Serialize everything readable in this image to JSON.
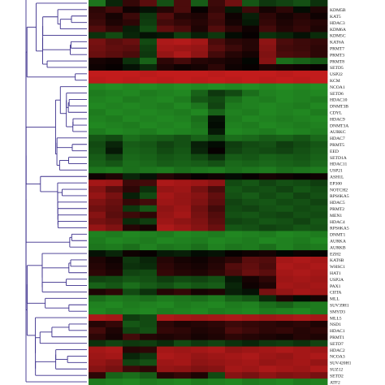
{
  "chart_data": {
    "type": "heatmap",
    "title": "",
    "xlabel": "",
    "ylabel": "",
    "color_scale": {
      "low": "#2db82d",
      "mid": "#000000",
      "high": "#e02020"
    },
    "value_range": [
      -3,
      3
    ],
    "dendrogram": {
      "side": "left",
      "color": "#3b2f8c"
    },
    "n_columns": 14,
    "row_labels": [
      "",
      "KDM5B",
      "KAT5",
      "HDAC3",
      "KDM6A",
      "KDM5C",
      "KAT6A",
      "PRMT7",
      "PRMT3",
      "PRMT8",
      "SETD5",
      "USP22",
      "KCM",
      "NCOA1",
      "SETD6",
      "HDAC10",
      "DNMT3B",
      "CDYL",
      "HDAC9",
      "DNMT3A",
      "AURKC",
      "HDAC7",
      "PRMT5",
      "EED",
      "SETD1A",
      "HDAC11",
      "USP21",
      "ASH1L",
      "EP300",
      "NOTCH2",
      "RPS6KA5",
      "HDAC5",
      "PRMT2",
      "MEN1",
      "HDAC4",
      "RPS6KA5",
      "DNMT1",
      "AURKA",
      "AURKB",
      "EZH2",
      "KAT6B",
      "WHSC1",
      "HAT1",
      "USP2A",
      "PAX1",
      "CIITA",
      "MLL",
      "SUV39H1",
      "SMYD3",
      "MLL5",
      "NSD1",
      "HDAC1",
      "PRMT1",
      "SETD7",
      "HDAC2",
      "NCOA3",
      "SUV420H1",
      "SUZ12",
      "SETD2",
      "ATF2",
      ""
    ],
    "values": [
      [
        -1.9,
        -0.6,
        0.7,
        1.2,
        -1.3,
        1.0,
        -1.5,
        0.8,
        1.5,
        -1.4,
        -0.9,
        -1.1,
        -1.3,
        -0.8
      ],
      [
        0.6,
        0.9,
        0.2,
        -0.3,
        0.5,
        1.0,
        0.1,
        0.7,
        -0.4,
        0.8,
        0.3,
        0.6,
        -0.2,
        0.4
      ],
      [
        0.7,
        0.3,
        0.8,
        -0.9,
        1.1,
        0.5,
        0.4,
        0.9,
        0.2,
        -0.5,
        0.6,
        0.3,
        0.5,
        0.2
      ],
      [
        0.8,
        0.4,
        0.6,
        -1.0,
        0.9,
        0.7,
        0.5,
        0.8,
        0.3,
        -0.4,
        0.7,
        0.4,
        0.6,
        0.5
      ],
      [
        1.1,
        0.7,
        -0.5,
        -1.2,
        1.3,
        1.0,
        0.4,
        1.1,
        0.6,
        0.2,
        0.9,
        0.5,
        0.7,
        0.4
      ],
      [
        -0.8,
        -1.2,
        -0.6,
        -0.3,
        -0.4,
        -1.0,
        -0.5,
        -0.9,
        -0.2,
        0.1,
        -0.8,
        -0.6,
        -0.3,
        -0.7
      ],
      [
        1.6,
        1.2,
        1.4,
        -1.2,
        2.3,
        2.4,
        2.2,
        1.0,
        0.6,
        0.5,
        1.9,
        1.0,
        0.8,
        0.7
      ],
      [
        1.5,
        1.3,
        1.2,
        -1.0,
        2.2,
        2.1,
        2.0,
        1.2,
        0.8,
        0.5,
        1.8,
        0.9,
        0.8,
        0.6
      ],
      [
        1.4,
        1.2,
        1.0,
        -0.9,
        2.0,
        2.3,
        1.9,
        0.9,
        0.5,
        0.3,
        1.7,
        1.0,
        0.9,
        0.6
      ],
      [
        0.3,
        0.2,
        -0.8,
        -1.6,
        0.6,
        0.9,
        0.5,
        0.4,
        0.3,
        -0.1,
        1.8,
        -1.8,
        -1.6,
        -1.4
      ],
      [
        0.2,
        0.1,
        -0.3,
        -0.7,
        0.4,
        0.2,
        0.3,
        0.6,
        0.2,
        0.1,
        0.4,
        0.3,
        0.2,
        0.1
      ],
      [
        2.6,
        2.6,
        2.6,
        2.5,
        2.6,
        2.6,
        2.6,
        2.5,
        2.6,
        2.6,
        2.6,
        2.5,
        2.6,
        2.6
      ],
      [
        2.5,
        2.6,
        2.5,
        2.6,
        2.5,
        2.6,
        2.5,
        2.6,
        2.5,
        2.6,
        2.5,
        2.6,
        2.5,
        2.6
      ],
      [
        -2.2,
        -2.3,
        -2.2,
        -2.3,
        -2.2,
        -2.3,
        -2.2,
        -2.3,
        -2.2,
        -2.3,
        -2.2,
        -2.3,
        -2.2,
        -2.3
      ],
      [
        -2.0,
        -2.1,
        -2.2,
        -2.0,
        -2.1,
        -2.2,
        -1.6,
        -0.9,
        -1.2,
        -1.8,
        -2.1,
        -2.2,
        -2.1,
        -2.2
      ],
      [
        -2.1,
        -2.2,
        -2.0,
        -2.1,
        -2.2,
        -2.0,
        -1.4,
        -1.2,
        -1.8,
        -2.1,
        -2.0,
        -2.2,
        -2.1,
        -2.0
      ],
      [
        -2.2,
        -2.1,
        -2.2,
        -2.1,
        -2.0,
        -2.2,
        -1.9,
        -1.1,
        -2.0,
        -2.1,
        -2.2,
        -2.1,
        -2.0,
        -2.2
      ],
      [
        -2.0,
        -2.2,
        -2.1,
        -2.2,
        -2.1,
        -2.0,
        -2.2,
        -1.6,
        -2.1,
        -2.0,
        -2.2,
        -2.1,
        -2.2,
        -2.0
      ],
      [
        -2.1,
        -2.0,
        -2.2,
        -2.1,
        -2.2,
        -2.1,
        -1.8,
        -0.3,
        -2.0,
        -2.2,
        -2.1,
        -2.0,
        -2.1,
        -2.2
      ],
      [
        -2.2,
        -2.1,
        -2.0,
        -2.2,
        -2.1,
        -2.2,
        -1.9,
        -0.2,
        -2.1,
        -2.0,
        -2.2,
        -2.1,
        -2.0,
        -2.1
      ],
      [
        -2.0,
        -2.2,
        -2.1,
        -2.0,
        -2.2,
        -2.1,
        -2.0,
        -0.4,
        -2.2,
        -2.1,
        -2.0,
        -2.2,
        -2.1,
        -2.0
      ],
      [
        -1.4,
        -1.2,
        -1.8,
        -1.6,
        -1.5,
        -1.3,
        -1.6,
        -1.2,
        -1.8,
        -1.7,
        -1.5,
        -1.6,
        -1.4,
        -1.7
      ],
      [
        -1.2,
        -0.6,
        -1.5,
        -1.4,
        -1.1,
        -1.3,
        -0.5,
        -0.2,
        -1.0,
        -1.2,
        -1.3,
        -1.0,
        -1.2,
        -1.4
      ],
      [
        -1.3,
        -0.4,
        -1.6,
        -1.5,
        -1.2,
        -1.4,
        -0.6,
        0.1,
        -1.1,
        -1.3,
        -1.2,
        -1.1,
        -1.3,
        -1.5
      ],
      [
        -1.5,
        -1.1,
        -1.7,
        -1.6,
        -1.4,
        -1.5,
        -1.2,
        -0.8,
        -1.5,
        -1.4,
        -1.6,
        -1.5,
        -1.4,
        -1.6
      ],
      [
        -1.6,
        -1.4,
        -1.8,
        -1.7,
        -1.5,
        -1.6,
        -1.5,
        -1.3,
        -1.7,
        -1.6,
        -1.7,
        -1.6,
        -1.5,
        -1.7
      ],
      [
        -1.9,
        -2.0,
        -1.8,
        -1.9,
        -2.0,
        -1.8,
        -1.9,
        -2.0,
        -1.8,
        -1.9,
        -2.0,
        -1.8,
        -1.9,
        -2.0
      ],
      [
        0.2,
        0.4,
        -0.6,
        -0.3,
        0.5,
        0.3,
        0.1,
        0.2,
        -0.2,
        0.1,
        0.3,
        0.2,
        0.1,
        0.2
      ],
      [
        2.2,
        2.1,
        0.8,
        0.9,
        2.3,
        2.2,
        2.1,
        1.9,
        -1.2,
        -1.4,
        -1.1,
        -1.3,
        -1.2,
        -1.0
      ],
      [
        1.8,
        1.2,
        0.6,
        -0.8,
        2.0,
        2.1,
        1.6,
        1.0,
        -1.4,
        -1.2,
        -1.3,
        -1.1,
        -1.4,
        -1.2
      ],
      [
        2.0,
        1.6,
        -0.5,
        -1.2,
        2.2,
        2.0,
        1.8,
        1.3,
        -1.3,
        -1.5,
        -1.2,
        -1.4,
        -1.1,
        -1.3
      ],
      [
        1.7,
        1.4,
        0.7,
        0.9,
        2.1,
        2.0,
        1.7,
        1.2,
        -1.1,
        -1.3,
        -1.4,
        -1.2,
        -1.3,
        -1.1
      ],
      [
        1.5,
        1.3,
        -0.9,
        -1.4,
        1.9,
        2.1,
        1.5,
        0.9,
        -1.2,
        -1.1,
        -1.3,
        -1.4,
        -1.2,
        -1.3
      ],
      [
        1.8,
        1.2,
        0.8,
        0.6,
        2.0,
        2.2,
        1.6,
        1.1,
        -1.3,
        -1.4,
        -1.2,
        -1.1,
        -1.3,
        -1.2
      ],
      [
        1.6,
        1.4,
        -0.7,
        -1.0,
        2.1,
        1.9,
        1.7,
        1.2,
        -1.1,
        -1.2,
        -1.4,
        -1.3,
        -1.1,
        -1.4
      ],
      [
        2.0,
        1.7,
        0.5,
        0.3,
        2.3,
        2.1,
        1.8,
        1.4,
        -1.4,
        -1.3,
        -1.1,
        -1.2,
        -1.4,
        -1.3
      ],
      [
        -2.1,
        -2.0,
        -2.2,
        -2.1,
        -2.0,
        -2.2,
        -2.1,
        -2.0,
        -2.2,
        -2.1,
        -2.0,
        -2.2,
        -2.1,
        -2.0
      ],
      [
        -2.0,
        -2.2,
        -2.1,
        -2.0,
        -2.2,
        -2.1,
        -2.0,
        -2.2,
        -2.1,
        -2.0,
        -2.2,
        -2.1,
        -2.0,
        -2.2
      ],
      [
        -1.9,
        -2.0,
        -1.8,
        -2.1,
        -1.9,
        -2.0,
        -1.8,
        -2.1,
        -1.9,
        -2.0,
        -1.8,
        -2.1,
        -1.9,
        -2.0
      ],
      [
        -0.3,
        -0.6,
        0.2,
        0.1,
        -0.4,
        -0.5,
        -0.2,
        -0.3,
        0.1,
        0.2,
        0.3,
        -0.1,
        0.2,
        0.1
      ],
      [
        0.4,
        0.2,
        -0.9,
        -0.6,
        0.5,
        0.3,
        0.2,
        0.4,
        0.6,
        1.2,
        1.1,
        2.2,
        2.3,
        2.2
      ],
      [
        0.5,
        0.3,
        -0.8,
        -0.7,
        0.6,
        0.4,
        0.3,
        0.5,
        1.1,
        1.3,
        1.0,
        2.3,
        2.2,
        2.3
      ],
      [
        0.6,
        0.4,
        -1.1,
        -1.2,
        0.7,
        0.5,
        0.4,
        0.6,
        1.0,
        1.4,
        1.2,
        2.2,
        2.3,
        2.2
      ],
      [
        -1.1,
        -1.2,
        -1.4,
        -1.3,
        -1.0,
        -1.2,
        -1.1,
        -1.3,
        -0.4,
        0.3,
        0.6,
        2.1,
        2.2,
        2.1
      ],
      [
        -1.6,
        -1.4,
        -1.8,
        -1.5,
        -1.3,
        -1.6,
        -1.4,
        -1.5,
        -0.6,
        0.2,
        0.4,
        2.2,
        2.1,
        2.2
      ],
      [
        0.4,
        0.6,
        -1.2,
        -0.8,
        0.5,
        0.7,
        0.3,
        0.4,
        -0.5,
        -0.3,
        1.6,
        2.0,
        2.2,
        2.1
      ],
      [
        -1.8,
        -2.0,
        -1.9,
        -1.8,
        -2.0,
        -1.9,
        -1.8,
        -2.0,
        -1.6,
        -1.4,
        -0.7,
        0.4,
        -0.2,
        0.3
      ],
      [
        -2.1,
        -2.2,
        -2.0,
        -2.1,
        -2.2,
        -2.0,
        -2.1,
        -2.2,
        -2.0,
        -2.1,
        -1.8,
        -1.6,
        -1.9,
        -2.0
      ],
      [
        -2.2,
        -2.0,
        -2.1,
        -2.2,
        -2.0,
        -2.1,
        -2.2,
        -2.0,
        -2.1,
        -2.2,
        -2.0,
        -2.1,
        -2.2,
        -2.0
      ],
      [
        2.3,
        2.2,
        -1.0,
        -1.2,
        2.3,
        2.2,
        2.1,
        2.2,
        2.3,
        2.2,
        2.1,
        2.2,
        2.3,
        2.2
      ],
      [
        0.5,
        0.7,
        -1.4,
        -1.2,
        0.6,
        0.4,
        0.5,
        0.6,
        0.8,
        0.7,
        0.6,
        0.5,
        0.6,
        0.4
      ],
      [
        0.9,
        0.4,
        -1.1,
        -1.3,
        0.7,
        0.6,
        0.4,
        0.5,
        1.0,
        0.8,
        0.6,
        0.7,
        0.5,
        0.6
      ],
      [
        0.6,
        0.3,
        0.9,
        0.5,
        0.4,
        0.5,
        0.3,
        0.4,
        0.6,
        0.5,
        0.4,
        0.3,
        0.5,
        0.4
      ],
      [
        -0.8,
        -1.1,
        -0.9,
        -1.0,
        -0.7,
        -1.2,
        -0.9,
        -1.1,
        -0.8,
        -0.6,
        -0.9,
        -1.0,
        -0.8,
        -1.1
      ],
      [
        2.2,
        2.3,
        0.5,
        0.6,
        2.2,
        2.1,
        2.2,
        2.3,
        2.0,
        2.1,
        2.2,
        2.3,
        2.2,
        2.1
      ],
      [
        2.1,
        2.2,
        -0.6,
        -0.9,
        2.3,
        2.2,
        2.0,
        2.1,
        2.2,
        2.3,
        2.1,
        2.0,
        2.2,
        2.3
      ],
      [
        2.0,
        1.8,
        -1.1,
        -1.3,
        2.1,
        2.2,
        1.9,
        2.0,
        2.1,
        2.2,
        2.0,
        2.1,
        2.2,
        2.0
      ],
      [
        1.8,
        1.6,
        0.8,
        0.6,
        2.0,
        1.9,
        1.7,
        1.8,
        2.2,
        2.1,
        2.3,
        2.2,
        2.1,
        2.3
      ],
      [
        0.6,
        -1.6,
        -1.8,
        -1.5,
        0.5,
        0.7,
        0.4,
        -1.2,
        1.8,
        1.6,
        1.9,
        1.7,
        1.8,
        1.6
      ],
      [
        -2.0,
        -2.1,
        -2.2,
        -2.0,
        -2.1,
        -2.2,
        -2.0,
        -2.1,
        -2.2,
        -2.0,
        -2.1,
        -2.2,
        -2.0,
        -2.1
      ]
    ]
  }
}
